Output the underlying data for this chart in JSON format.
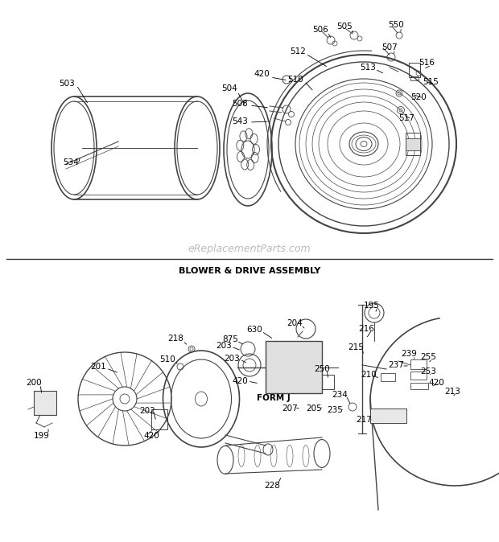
{
  "bg_color": "#ffffff",
  "line_color": "#444444",
  "text_color": "#000000",
  "watermark": "eReplacementParts.com",
  "title": "BLOWER & DRIVE ASSEMBLY",
  "fig_w": 6.2,
  "fig_h": 6.74,
  "dpi": 100
}
